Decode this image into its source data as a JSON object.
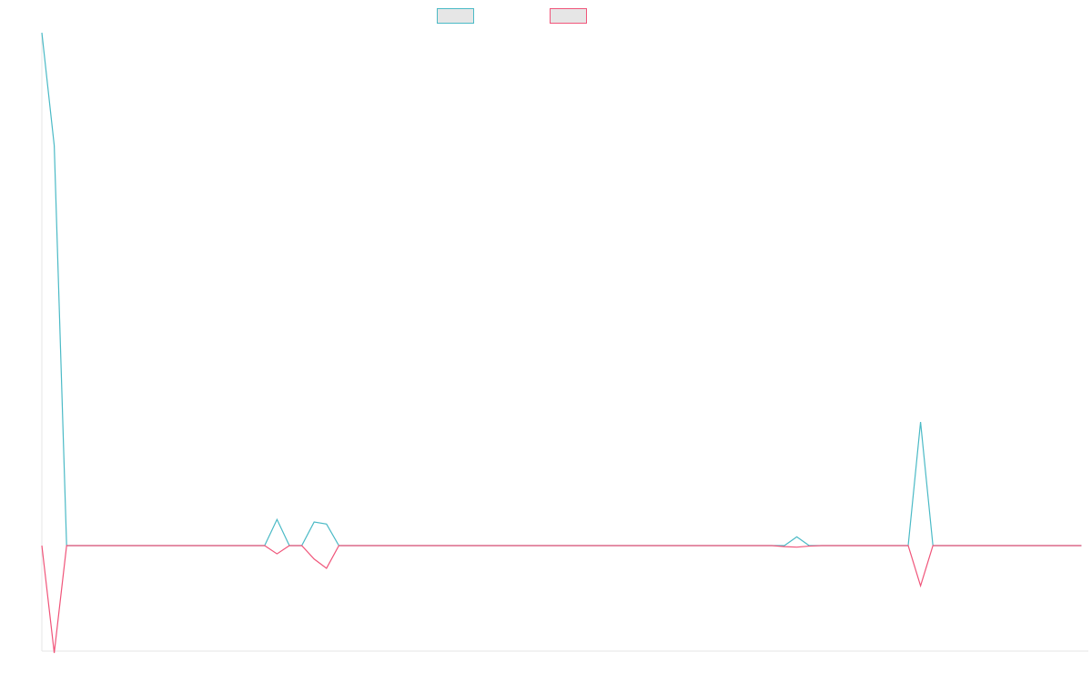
{
  "chart_data": {
    "type": "line",
    "title": "",
    "xlabel": "",
    "ylabel": "",
    "grid": false,
    "legend_position": "top-center",
    "series": [
      {
        "color": "#4bbac6",
        "fill": "#e6e6e6",
        "values": [
          100,
          78,
          0,
          0,
          0,
          0,
          0,
          0,
          0,
          0,
          0,
          0,
          0,
          0,
          0,
          0,
          0,
          0,
          0,
          5.1,
          0,
          0,
          4.6,
          4.2,
          0,
          0,
          0,
          0,
          0,
          0,
          0,
          0,
          0,
          0,
          0,
          0,
          0,
          0,
          0,
          0,
          0,
          0,
          0,
          0,
          0,
          0,
          0,
          0,
          0,
          0,
          0,
          0,
          0,
          0,
          0,
          0,
          0,
          0,
          0,
          0,
          0,
          1.7,
          0,
          0,
          0,
          0,
          0,
          0,
          0,
          0,
          0,
          24.1,
          0,
          0,
          0,
          0,
          0,
          0,
          0,
          0,
          0,
          0,
          0,
          0,
          0
        ]
      },
      {
        "color": "#f0557a",
        "fill": "#e6e6e6",
        "values": [
          0,
          -20.8,
          0,
          0,
          0,
          0,
          0,
          0,
          0,
          0,
          0,
          0,
          0,
          0,
          0,
          0,
          0,
          0,
          0,
          -1.6,
          0,
          0,
          -2.6,
          -4.4,
          0,
          0,
          0,
          0,
          0,
          0,
          0,
          0,
          0,
          0,
          0,
          0,
          0,
          0,
          0,
          0,
          0,
          0,
          0,
          0,
          0,
          0,
          0,
          0,
          0,
          0,
          0,
          0,
          0,
          0,
          0,
          0,
          0,
          0,
          0,
          0,
          -0.2,
          -0.3,
          -0.1,
          0,
          0,
          0,
          0,
          0,
          0,
          0,
          0,
          -7.8,
          0,
          0,
          0,
          0,
          0,
          0,
          0,
          0,
          0,
          0,
          0,
          0,
          0
        ]
      }
    ],
    "ylim": [
      -20.8,
      100
    ]
  }
}
